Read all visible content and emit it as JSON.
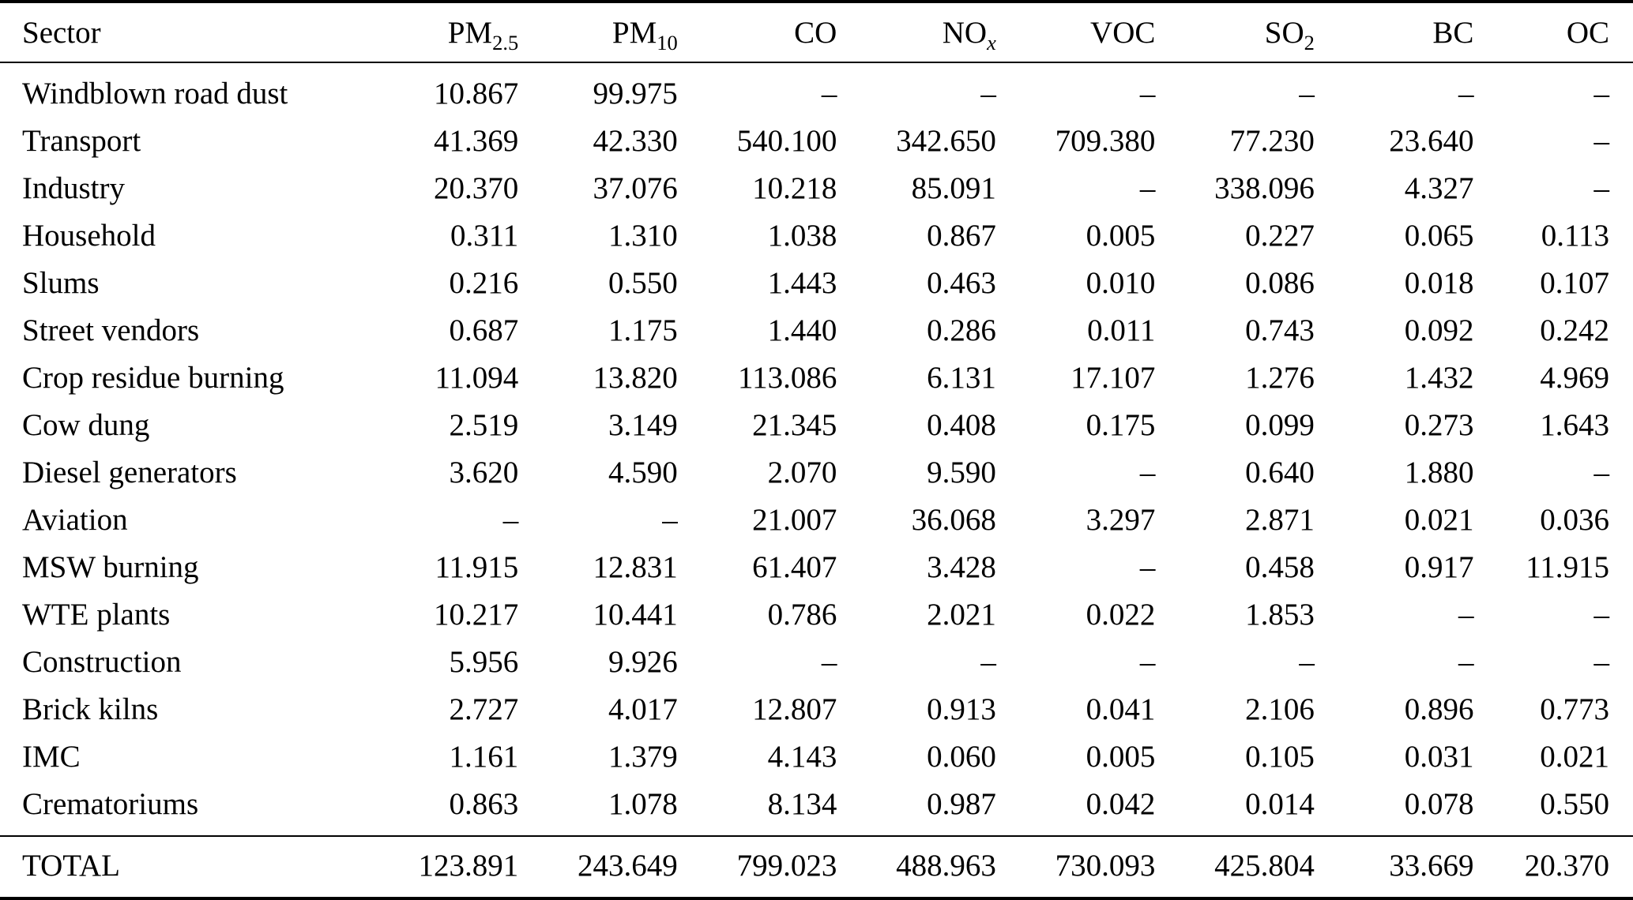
{
  "table": {
    "columns": [
      {
        "key": "sector",
        "label": "Sector",
        "sub": ""
      },
      {
        "key": "pm25",
        "label": "PM",
        "sub": "2.5"
      },
      {
        "key": "pm10",
        "label": "PM",
        "sub": "10"
      },
      {
        "key": "co",
        "label": "CO",
        "sub": ""
      },
      {
        "key": "nox",
        "label": "NO",
        "sub": "x",
        "sub_italic": true
      },
      {
        "key": "voc",
        "label": "VOC",
        "sub": ""
      },
      {
        "key": "so2",
        "label": "SO",
        "sub": "2"
      },
      {
        "key": "bc",
        "label": "BC",
        "sub": ""
      },
      {
        "key": "oc",
        "label": "OC",
        "sub": ""
      }
    ],
    "rows": [
      {
        "sector": "Windblown road dust",
        "values": [
          "10.867",
          "99.975",
          "–",
          "–",
          "–",
          "–",
          "–",
          "–"
        ]
      },
      {
        "sector": "Transport",
        "values": [
          "41.369",
          "42.330",
          "540.100",
          "342.650",
          "709.380",
          "77.230",
          "23.640",
          "–"
        ]
      },
      {
        "sector": "Industry",
        "values": [
          "20.370",
          "37.076",
          "10.218",
          "85.091",
          "–",
          "338.096",
          "4.327",
          "–"
        ]
      },
      {
        "sector": "Household",
        "values": [
          "0.311",
          "1.310",
          "1.038",
          "0.867",
          "0.005",
          "0.227",
          "0.065",
          "0.113"
        ]
      },
      {
        "sector": "Slums",
        "values": [
          "0.216",
          "0.550",
          "1.443",
          "0.463",
          "0.010",
          "0.086",
          "0.018",
          "0.107"
        ]
      },
      {
        "sector": "Street vendors",
        "values": [
          "0.687",
          "1.175",
          "1.440",
          "0.286",
          "0.011",
          "0.743",
          "0.092",
          "0.242"
        ]
      },
      {
        "sector": "Crop residue burning",
        "values": [
          "11.094",
          "13.820",
          "113.086",
          "6.131",
          "17.107",
          "1.276",
          "1.432",
          "4.969"
        ]
      },
      {
        "sector": "Cow dung",
        "values": [
          "2.519",
          "3.149",
          "21.345",
          "0.408",
          "0.175",
          "0.099",
          "0.273",
          "1.643"
        ]
      },
      {
        "sector": "Diesel generators",
        "values": [
          "3.620",
          "4.590",
          "2.070",
          "9.590",
          "–",
          "0.640",
          "1.880",
          "–"
        ]
      },
      {
        "sector": "Aviation",
        "values": [
          "–",
          "–",
          "21.007",
          "36.068",
          "3.297",
          "2.871",
          "0.021",
          "0.036"
        ]
      },
      {
        "sector": "MSW burning",
        "values": [
          "11.915",
          "12.831",
          "61.407",
          "3.428",
          "–",
          "0.458",
          "0.917",
          "11.915"
        ]
      },
      {
        "sector": "WTE plants",
        "values": [
          "10.217",
          "10.441",
          "0.786",
          "2.021",
          "0.022",
          "1.853",
          "–",
          "–"
        ]
      },
      {
        "sector": "Construction",
        "values": [
          "5.956",
          "9.926",
          "–",
          "–",
          "–",
          "–",
          "–",
          "–"
        ]
      },
      {
        "sector": "Brick kilns",
        "values": [
          "2.727",
          "4.017",
          "12.807",
          "0.913",
          "0.041",
          "2.106",
          "0.896",
          "0.773"
        ]
      },
      {
        "sector": "IMC",
        "values": [
          "1.161",
          "1.379",
          "4.143",
          "0.060",
          "0.005",
          "0.105",
          "0.031",
          "0.021"
        ]
      },
      {
        "sector": "Crematoriums",
        "values": [
          "0.863",
          "1.078",
          "8.134",
          "0.987",
          "0.042",
          "0.014",
          "0.078",
          "0.550"
        ]
      }
    ],
    "total": {
      "sector": "TOTAL",
      "values": [
        "123.891",
        "243.649",
        "799.023",
        "488.963",
        "730.093",
        "425.804",
        "33.669",
        "20.370"
      ]
    }
  }
}
